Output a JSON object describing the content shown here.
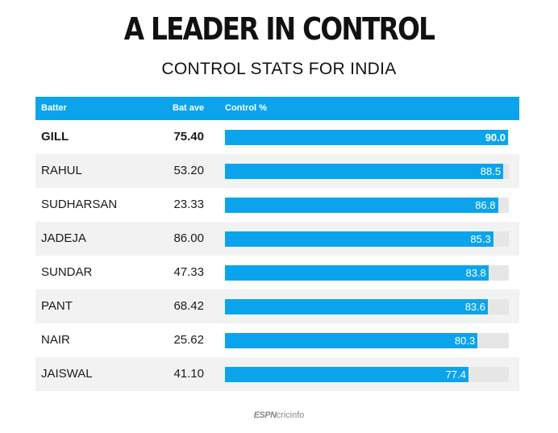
{
  "title": "A LEADER IN CONTROL",
  "subtitle": "CONTROL STATS FOR INDIA",
  "headers": {
    "batter": "Batter",
    "bat_ave": "Bat ave",
    "control": "Control %"
  },
  "colors": {
    "accent": "#0ba4ec",
    "track": "#e6e6e6",
    "alt_row": "#f2f2f2"
  },
  "logo": {
    "espn": "ESPN",
    "cricinfo": "cricinfo"
  },
  "chart_data": {
    "type": "bar",
    "title": "A LEADER IN CONTROL",
    "subtitle": "CONTROL STATS FOR INDIA",
    "xlim": [
      0,
      100
    ],
    "rows": [
      {
        "batter": "GILL",
        "bat_ave": "75.40",
        "control": 90.0,
        "control_label": "90.0",
        "highlight": true
      },
      {
        "batter": "RAHUL",
        "bat_ave": "53.20",
        "control": 88.5,
        "control_label": "88.5",
        "highlight": false
      },
      {
        "batter": "SUDHARSAN",
        "bat_ave": "23.33",
        "control": 86.8,
        "control_label": "86.8",
        "highlight": false
      },
      {
        "batter": "JADEJA",
        "bat_ave": "86.00",
        "control": 85.3,
        "control_label": "85.3",
        "highlight": false
      },
      {
        "batter": "SUNDAR",
        "bat_ave": "47.33",
        "control": 83.8,
        "control_label": "83.8",
        "highlight": false
      },
      {
        "batter": "PANT",
        "bat_ave": "68.42",
        "control": 83.6,
        "control_label": "83.6",
        "highlight": false
      },
      {
        "batter": "NAIR",
        "bat_ave": "25.62",
        "control": 80.3,
        "control_label": "80.3",
        "highlight": false
      },
      {
        "batter": "JAISWAL",
        "bat_ave": "41.10",
        "control": 77.4,
        "control_label": "77.4",
        "highlight": false
      }
    ]
  }
}
